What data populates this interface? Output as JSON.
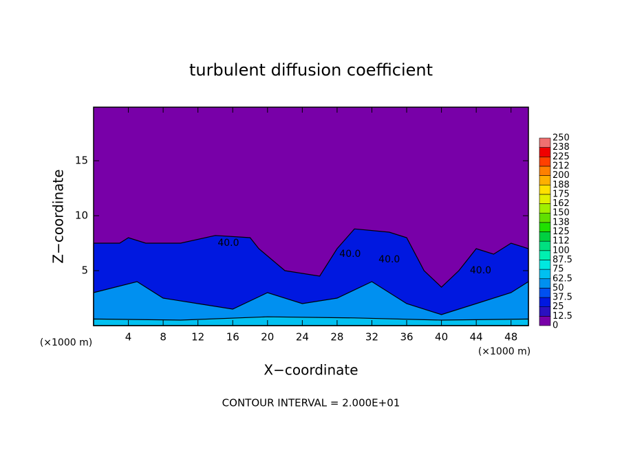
{
  "chart_data": {
    "type": "contour",
    "title": "turbulent diffusion coefficient",
    "xlabel": "X−coordinate",
    "ylabel": "Z−coordinate",
    "xunit": "(×1000 m)",
    "yunit": "(×1000 m)",
    "note": "CONTOUR INTERVAL = 2.000E+01",
    "xlim": [
      0,
      50
    ],
    "ylim": [
      0,
      19.875
    ],
    "xticks": [
      4,
      8,
      12,
      16,
      20,
      24,
      28,
      32,
      36,
      40,
      44,
      48
    ],
    "yticks": [
      5,
      10,
      15
    ],
    "background_value": 5,
    "layers": [
      {
        "x": [
          0,
          3,
          4,
          6,
          10,
          14,
          18,
          19,
          22,
          26,
          28,
          30,
          34,
          36,
          38,
          40,
          42,
          44,
          46,
          48,
          50
        ],
        "top": [
          7.5,
          7.5,
          8,
          7.5,
          7.5,
          8.2,
          8,
          7,
          5,
          4.5,
          7,
          8.8,
          8.5,
          8,
          5,
          3.5,
          5,
          7,
          6.5,
          7.5,
          7
        ],
        "value": 30
      },
      {
        "x": [
          0,
          5,
          8,
          12,
          16,
          20,
          24,
          28,
          32,
          36,
          40,
          44,
          48,
          50
        ],
        "top": [
          3,
          4,
          2.5,
          2,
          1.5,
          3,
          2,
          2.5,
          4,
          2,
          1,
          2,
          3,
          4
        ],
        "value": 55
      },
      {
        "x": [
          0,
          10,
          20,
          30,
          40,
          50
        ],
        "top": [
          0.6,
          0.5,
          0.8,
          0.7,
          0.5,
          0.6
        ],
        "value": 70
      }
    ],
    "contour_labels": {
      "x": [
        15.5,
        29.5,
        34,
        44.5
      ],
      "z": [
        7.5,
        6.5,
        6,
        5
      ],
      "values": [
        40,
        40,
        40,
        40
      ],
      "value_labels": [
        "40.0",
        "40.0",
        "40.0",
        "40.0"
      ]
    },
    "colorbar": {
      "ticks": [
        0,
        12.5,
        25,
        37.5,
        50,
        62.5,
        75,
        87.5,
        100,
        {
          "value": 112.5,
          "label": "112"
        },
        125,
        {
          "value": 137.5,
          "label": "138"
        },
        150,
        {
          "value": 162.5,
          "label": "162"
        },
        175,
        {
          "value": 187.5,
          "label": "188"
        },
        200,
        {
          "value": 212.5,
          "label": "212"
        },
        225,
        {
          "value": 237.5,
          "label": "238"
        },
        250
      ],
      "colors": [
        "#7800a8",
        "#2a10c0",
        "#0018e0",
        "#0050f0",
        "#0090f0",
        "#00c0f0",
        "#00e8e0",
        "#00f0b0",
        "#00e080",
        "#00d040",
        "#20e000",
        "#60e000",
        "#a0f000",
        "#e0f000",
        "#ffe000",
        "#ffb000",
        "#ff8000",
        "#ff4000",
        "#f00000",
        "#f07070"
      ]
    }
  }
}
